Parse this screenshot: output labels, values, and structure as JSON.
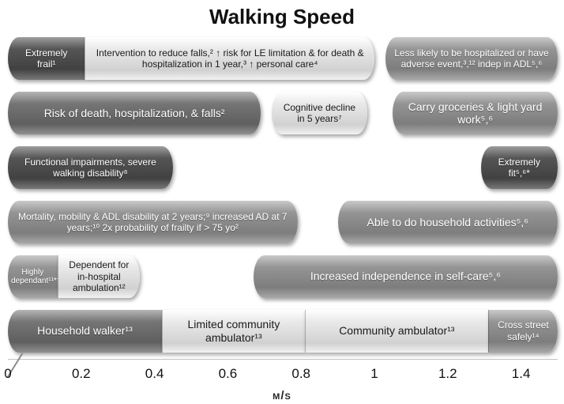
{
  "chart_data": {
    "type": "bar",
    "subtype": "horizontal-range",
    "title": "Walking Speed",
    "xlabel": "m/s",
    "ylabel": "",
    "xlim": [
      0,
      1.5
    ],
    "grid": false,
    "legend": false,
    "xticks": [
      {
        "label": "0",
        "value": 0
      },
      {
        "label": "0.2",
        "value": 0.2
      },
      {
        "label": "0.4",
        "value": 0.4
      },
      {
        "label": "0.6",
        "value": 0.6
      },
      {
        "label": "0.8",
        "value": 0.8
      },
      {
        "label": "1",
        "value": 1
      },
      {
        "label": "1.2",
        "value": 1.2
      },
      {
        "label": "1.4",
        "value": 1.4
      }
    ],
    "colors": {
      "dark": "#474747",
      "mediumdark": "#6b6b6b",
      "medium": "#8e8e8e",
      "light": "#e3e3e3"
    },
    "rows": [
      {
        "bars": [
          {
            "label": "Extremely frail¹",
            "start": 0,
            "end": 0.21,
            "tone": "dark"
          },
          {
            "label": "Intervention to reduce falls,² ↑ risk for LE limitation & for death & hospitalization in 1 year,³ ↑ personal care⁴",
            "start": 0.21,
            "end": 1.0,
            "tone": "light"
          },
          {
            "label": "Less likely to be hospitalized or have adverse event,³,¹² indep in ADL⁵,⁶",
            "start": 1.03,
            "end": 1.5,
            "tone": "medium"
          }
        ]
      },
      {
        "bars": [
          {
            "label": "Risk of death, hospitalization, & falls²",
            "start": 0,
            "end": 0.69,
            "tone": "mediumdark"
          },
          {
            "label": "Cognitive decline in 5 years⁷",
            "start": 0.72,
            "end": 0.98,
            "tone": "light"
          },
          {
            "label": "Carry groceries & light yard work⁵,⁶",
            "start": 1.05,
            "end": 1.5,
            "tone": "medium"
          }
        ]
      },
      {
        "bars": [
          {
            "label": "Functional impairments, severe walking disability⁸",
            "start": 0,
            "end": 0.45,
            "tone": "dark"
          },
          {
            "label": "Extremely fit⁵,⁶*",
            "start": 1.29,
            "end": 1.5,
            "tone": "dark"
          }
        ]
      },
      {
        "bars": [
          {
            "label": "Mortality, mobility & ADL disability at 2 years;⁹ increased AD at 7 years;¹⁰ 2x probability of frailty if > 75 yo²",
            "start": 0,
            "end": 0.79,
            "tone": "medium"
          },
          {
            "label": "Able to do household activities⁵,⁶",
            "start": 0.9,
            "end": 1.5,
            "tone": "medium"
          }
        ]
      },
      {
        "bars": [
          {
            "label": "Highly dependant¹¹**",
            "start": 0,
            "end": 0.135,
            "tone": "medium"
          },
          {
            "label": "Dependent for in-hospital ambulation¹²",
            "start": 0.135,
            "end": 0.36,
            "tone": "light"
          },
          {
            "label": "Increased independence in self-care⁵,⁶",
            "start": 0.67,
            "end": 1.5,
            "tone": "medium"
          }
        ]
      },
      {
        "bars": [
          {
            "label": "Household walker¹³",
            "start": 0,
            "end": 0.42,
            "tone": "mediumdark"
          },
          {
            "label": "Limited community ambulator¹³",
            "start": 0.42,
            "end": 0.81,
            "tone": "light"
          },
          {
            "label": "Community ambulator¹³",
            "start": 0.81,
            "end": 1.31,
            "tone": "light"
          },
          {
            "label": "Cross street safely¹⁴",
            "start": 1.31,
            "end": 1.5,
            "tone": "medium"
          }
        ]
      }
    ]
  }
}
